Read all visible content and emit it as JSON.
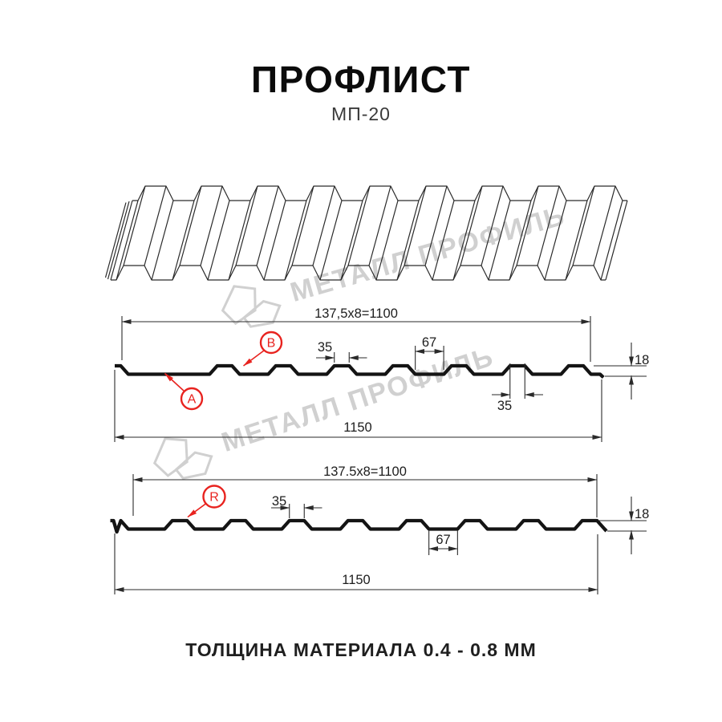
{
  "page": {
    "title": "ПРОФЛИСТ",
    "subtitle": "МП-20",
    "footer": "ТОЛЩИНА МАТЕРИАЛА 0.4 - 0.8 ММ"
  },
  "watermark": {
    "text": "МЕТАЛЛ ПРОФИЛЬ"
  },
  "colors": {
    "line": "#2a2a2a",
    "profile": "#141414",
    "red": "#e8231f",
    "watermark": "#d0d0d0",
    "background": "#ffffff"
  },
  "section1": {
    "dim_coverage": "137,5x8=1100",
    "dim_overall": "1150",
    "dim_rib_width_top": "35",
    "dim_flat_width": "67",
    "dim_rib_width_bottom": "35",
    "dim_height": "18",
    "label_a": "A",
    "label_b": "B"
  },
  "section2": {
    "dim_coverage": "137.5x8=1100",
    "dim_overall": "1150",
    "dim_rib_width_top": "35",
    "dim_flat_width": "67",
    "dim_height": "18",
    "label_r": "R"
  }
}
